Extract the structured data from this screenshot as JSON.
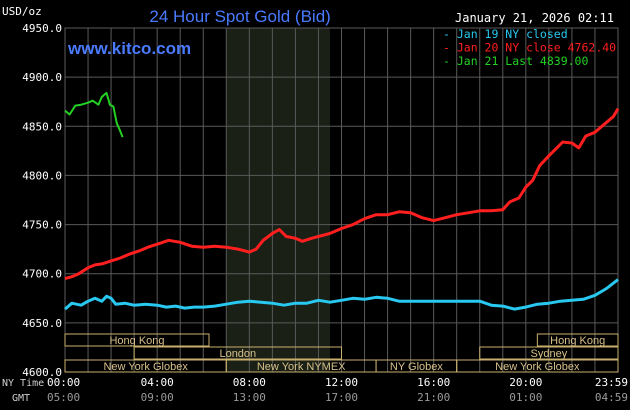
{
  "header": {
    "title": "24 Hour Spot Gold (Bid)",
    "timestamp": "January 21, 2026 02:11",
    "watermark": "www.kitco.com",
    "unit_label": "USD/oz"
  },
  "colors": {
    "background": "#000000",
    "grid": "#5a5a5a",
    "title": "#4a7bff",
    "jan19": "#28c8f0",
    "jan20": "#ff1f1f",
    "jan21": "#23d123",
    "session_box": "#c9b16d",
    "session_text": "#d8c08a",
    "shade": "#1a2016"
  },
  "legend": [
    {
      "marker": "-",
      "label": "Jan 19 NY closed",
      "color": "#28c8f0"
    },
    {
      "marker": "-",
      "label": "Jan 20 NY close 4762.40",
      "color": "#ff1f1f"
    },
    {
      "marker": "-",
      "label": "Jan 21 Last 4839.00",
      "color": "#23d123"
    }
  ],
  "axis": {
    "ny_time_label": "NY Time",
    "gmt_label": "GMT",
    "ny_ticks": [
      "00:00",
      "04:00",
      "08:00",
      "12:00",
      "16:00",
      "20:00",
      "23:59"
    ],
    "gmt_ticks": [
      "05:00",
      "09:00",
      "13:00",
      "17:00",
      "21:00",
      "01:00",
      "04:59"
    ],
    "y_ticks": [
      "4950.0",
      "4900.0",
      "4850.0",
      "4800.0",
      "4750.0",
      "4700.0",
      "4650.0",
      "4600.0"
    ]
  },
  "sessions": [
    {
      "label": "Hong Kong",
      "start": 0.0,
      "end": 6.25,
      "row": 0
    },
    {
      "label": "Hong Kong",
      "start": 20.5,
      "end": 24.0,
      "row": 0
    },
    {
      "label": "London",
      "start": 3.0,
      "end": 12.0,
      "row": 1
    },
    {
      "label": "Sydney",
      "start": 18.0,
      "end": 24.0,
      "row": 1
    },
    {
      "label": "New York Globex",
      "start": 0.0,
      "end": 7.0,
      "row": 2
    },
    {
      "label": "New York NYMEX",
      "start": 7.0,
      "end": 13.5,
      "row": 2
    },
    {
      "label": "NY Globex",
      "start": 13.5,
      "end": 17.0,
      "row": 2
    },
    {
      "label": "New York Globex",
      "start": 17.0,
      "end": 24.0,
      "row": 2
    }
  ],
  "chart_data": {
    "type": "line",
    "title": "24 Hour Spot Gold (Bid)",
    "ylabel": "USD/oz",
    "xlabel": "NY Time",
    "xlim": [
      0,
      24
    ],
    "ylim": [
      4600,
      4950
    ],
    "x_ticks_ny": [
      "00:00",
      "04:00",
      "08:00",
      "12:00",
      "16:00",
      "20:00",
      "23:59"
    ],
    "x_ticks_gmt": [
      "05:00",
      "09:00",
      "13:00",
      "17:00",
      "21:00",
      "01:00",
      "04:59"
    ],
    "grid": true,
    "shaded_region": [
      7.0,
      11.5
    ],
    "legend_position": "top-right",
    "series": [
      {
        "name": "Jan 19 NY closed",
        "color": "#28c8f0",
        "points": [
          [
            0.0,
            4664
          ],
          [
            0.3,
            4670
          ],
          [
            0.7,
            4668
          ],
          [
            1.0,
            4672
          ],
          [
            1.3,
            4675
          ],
          [
            1.6,
            4672
          ],
          [
            1.8,
            4677
          ],
          [
            2.0,
            4675
          ],
          [
            2.2,
            4669
          ],
          [
            2.6,
            4670
          ],
          [
            3.0,
            4668
          ],
          [
            3.5,
            4669
          ],
          [
            4.0,
            4668
          ],
          [
            4.4,
            4666
          ],
          [
            4.8,
            4667
          ],
          [
            5.2,
            4665
          ],
          [
            5.6,
            4666
          ],
          [
            6.0,
            4666
          ],
          [
            6.5,
            4667
          ],
          [
            7.0,
            4669
          ],
          [
            7.5,
            4671
          ],
          [
            8.0,
            4672
          ],
          [
            8.5,
            4671
          ],
          [
            9.0,
            4670
          ],
          [
            9.5,
            4668
          ],
          [
            10.0,
            4670
          ],
          [
            10.5,
            4670
          ],
          [
            11.0,
            4673
          ],
          [
            11.5,
            4671
          ],
          [
            12.0,
            4673
          ],
          [
            12.5,
            4675
          ],
          [
            13.0,
            4674
          ],
          [
            13.5,
            4676
          ],
          [
            14.0,
            4675
          ],
          [
            14.5,
            4672
          ],
          [
            15.0,
            4672
          ],
          [
            15.5,
            4672
          ],
          [
            16.0,
            4672
          ],
          [
            16.5,
            4672
          ],
          [
            17.0,
            4672
          ],
          [
            17.5,
            4672
          ],
          [
            18.0,
            4672
          ],
          [
            18.5,
            4668
          ],
          [
            19.0,
            4667
          ],
          [
            19.5,
            4664
          ],
          [
            20.0,
            4666
          ],
          [
            20.5,
            4669
          ],
          [
            21.0,
            4670
          ],
          [
            21.5,
            4672
          ],
          [
            22.0,
            4673
          ],
          [
            22.5,
            4674
          ],
          [
            23.0,
            4678
          ],
          [
            23.5,
            4685
          ],
          [
            24.0,
            4694
          ]
        ]
      },
      {
        "name": "Jan 20 NY close 4762.40",
        "color": "#ff1f1f",
        "points": [
          [
            0.0,
            4695
          ],
          [
            0.3,
            4697
          ],
          [
            0.6,
            4700
          ],
          [
            1.0,
            4706
          ],
          [
            1.3,
            4709
          ],
          [
            1.6,
            4710
          ],
          [
            2.0,
            4713
          ],
          [
            2.4,
            4716
          ],
          [
            2.8,
            4720
          ],
          [
            3.2,
            4723
          ],
          [
            3.6,
            4727
          ],
          [
            4.0,
            4730
          ],
          [
            4.5,
            4734
          ],
          [
            5.0,
            4732
          ],
          [
            5.5,
            4728
          ],
          [
            6.0,
            4727
          ],
          [
            6.5,
            4728
          ],
          [
            7.0,
            4727
          ],
          [
            7.5,
            4725
          ],
          [
            8.0,
            4722
          ],
          [
            8.3,
            4725
          ],
          [
            8.6,
            4734
          ],
          [
            9.0,
            4741
          ],
          [
            9.3,
            4745
          ],
          [
            9.6,
            4738
          ],
          [
            10.0,
            4736
          ],
          [
            10.3,
            4733
          ],
          [
            10.7,
            4736
          ],
          [
            11.0,
            4738
          ],
          [
            11.5,
            4741
          ],
          [
            12.0,
            4746
          ],
          [
            12.5,
            4750
          ],
          [
            13.0,
            4756
          ],
          [
            13.5,
            4760
          ],
          [
            14.0,
            4760
          ],
          [
            14.5,
            4763
          ],
          [
            15.0,
            4762
          ],
          [
            15.5,
            4757
          ],
          [
            16.0,
            4754
          ],
          [
            16.5,
            4757
          ],
          [
            17.0,
            4760
          ],
          [
            17.5,
            4762
          ],
          [
            18.0,
            4764
          ],
          [
            18.5,
            4764
          ],
          [
            19.0,
            4765
          ],
          [
            19.3,
            4773
          ],
          [
            19.7,
            4777
          ],
          [
            20.0,
            4788
          ],
          [
            20.3,
            4795
          ],
          [
            20.6,
            4810
          ],
          [
            21.0,
            4820
          ],
          [
            21.3,
            4827
          ],
          [
            21.6,
            4834
          ],
          [
            22.0,
            4833
          ],
          [
            22.3,
            4828
          ],
          [
            22.6,
            4840
          ],
          [
            23.0,
            4844
          ],
          [
            23.4,
            4852
          ],
          [
            23.8,
            4860
          ],
          [
            24.0,
            4868
          ]
        ]
      },
      {
        "name": "Jan 21 Last 4839.00",
        "color": "#23d123",
        "points": [
          [
            0.0,
            4866
          ],
          [
            0.2,
            4862
          ],
          [
            0.45,
            4871
          ],
          [
            0.7,
            4872
          ],
          [
            1.0,
            4874
          ],
          [
            1.2,
            4876
          ],
          [
            1.45,
            4872
          ],
          [
            1.6,
            4880
          ],
          [
            1.8,
            4884
          ],
          [
            1.95,
            4872
          ],
          [
            2.1,
            4870
          ],
          [
            2.25,
            4853
          ],
          [
            2.4,
            4845
          ],
          [
            2.5,
            4839
          ]
        ]
      }
    ]
  }
}
